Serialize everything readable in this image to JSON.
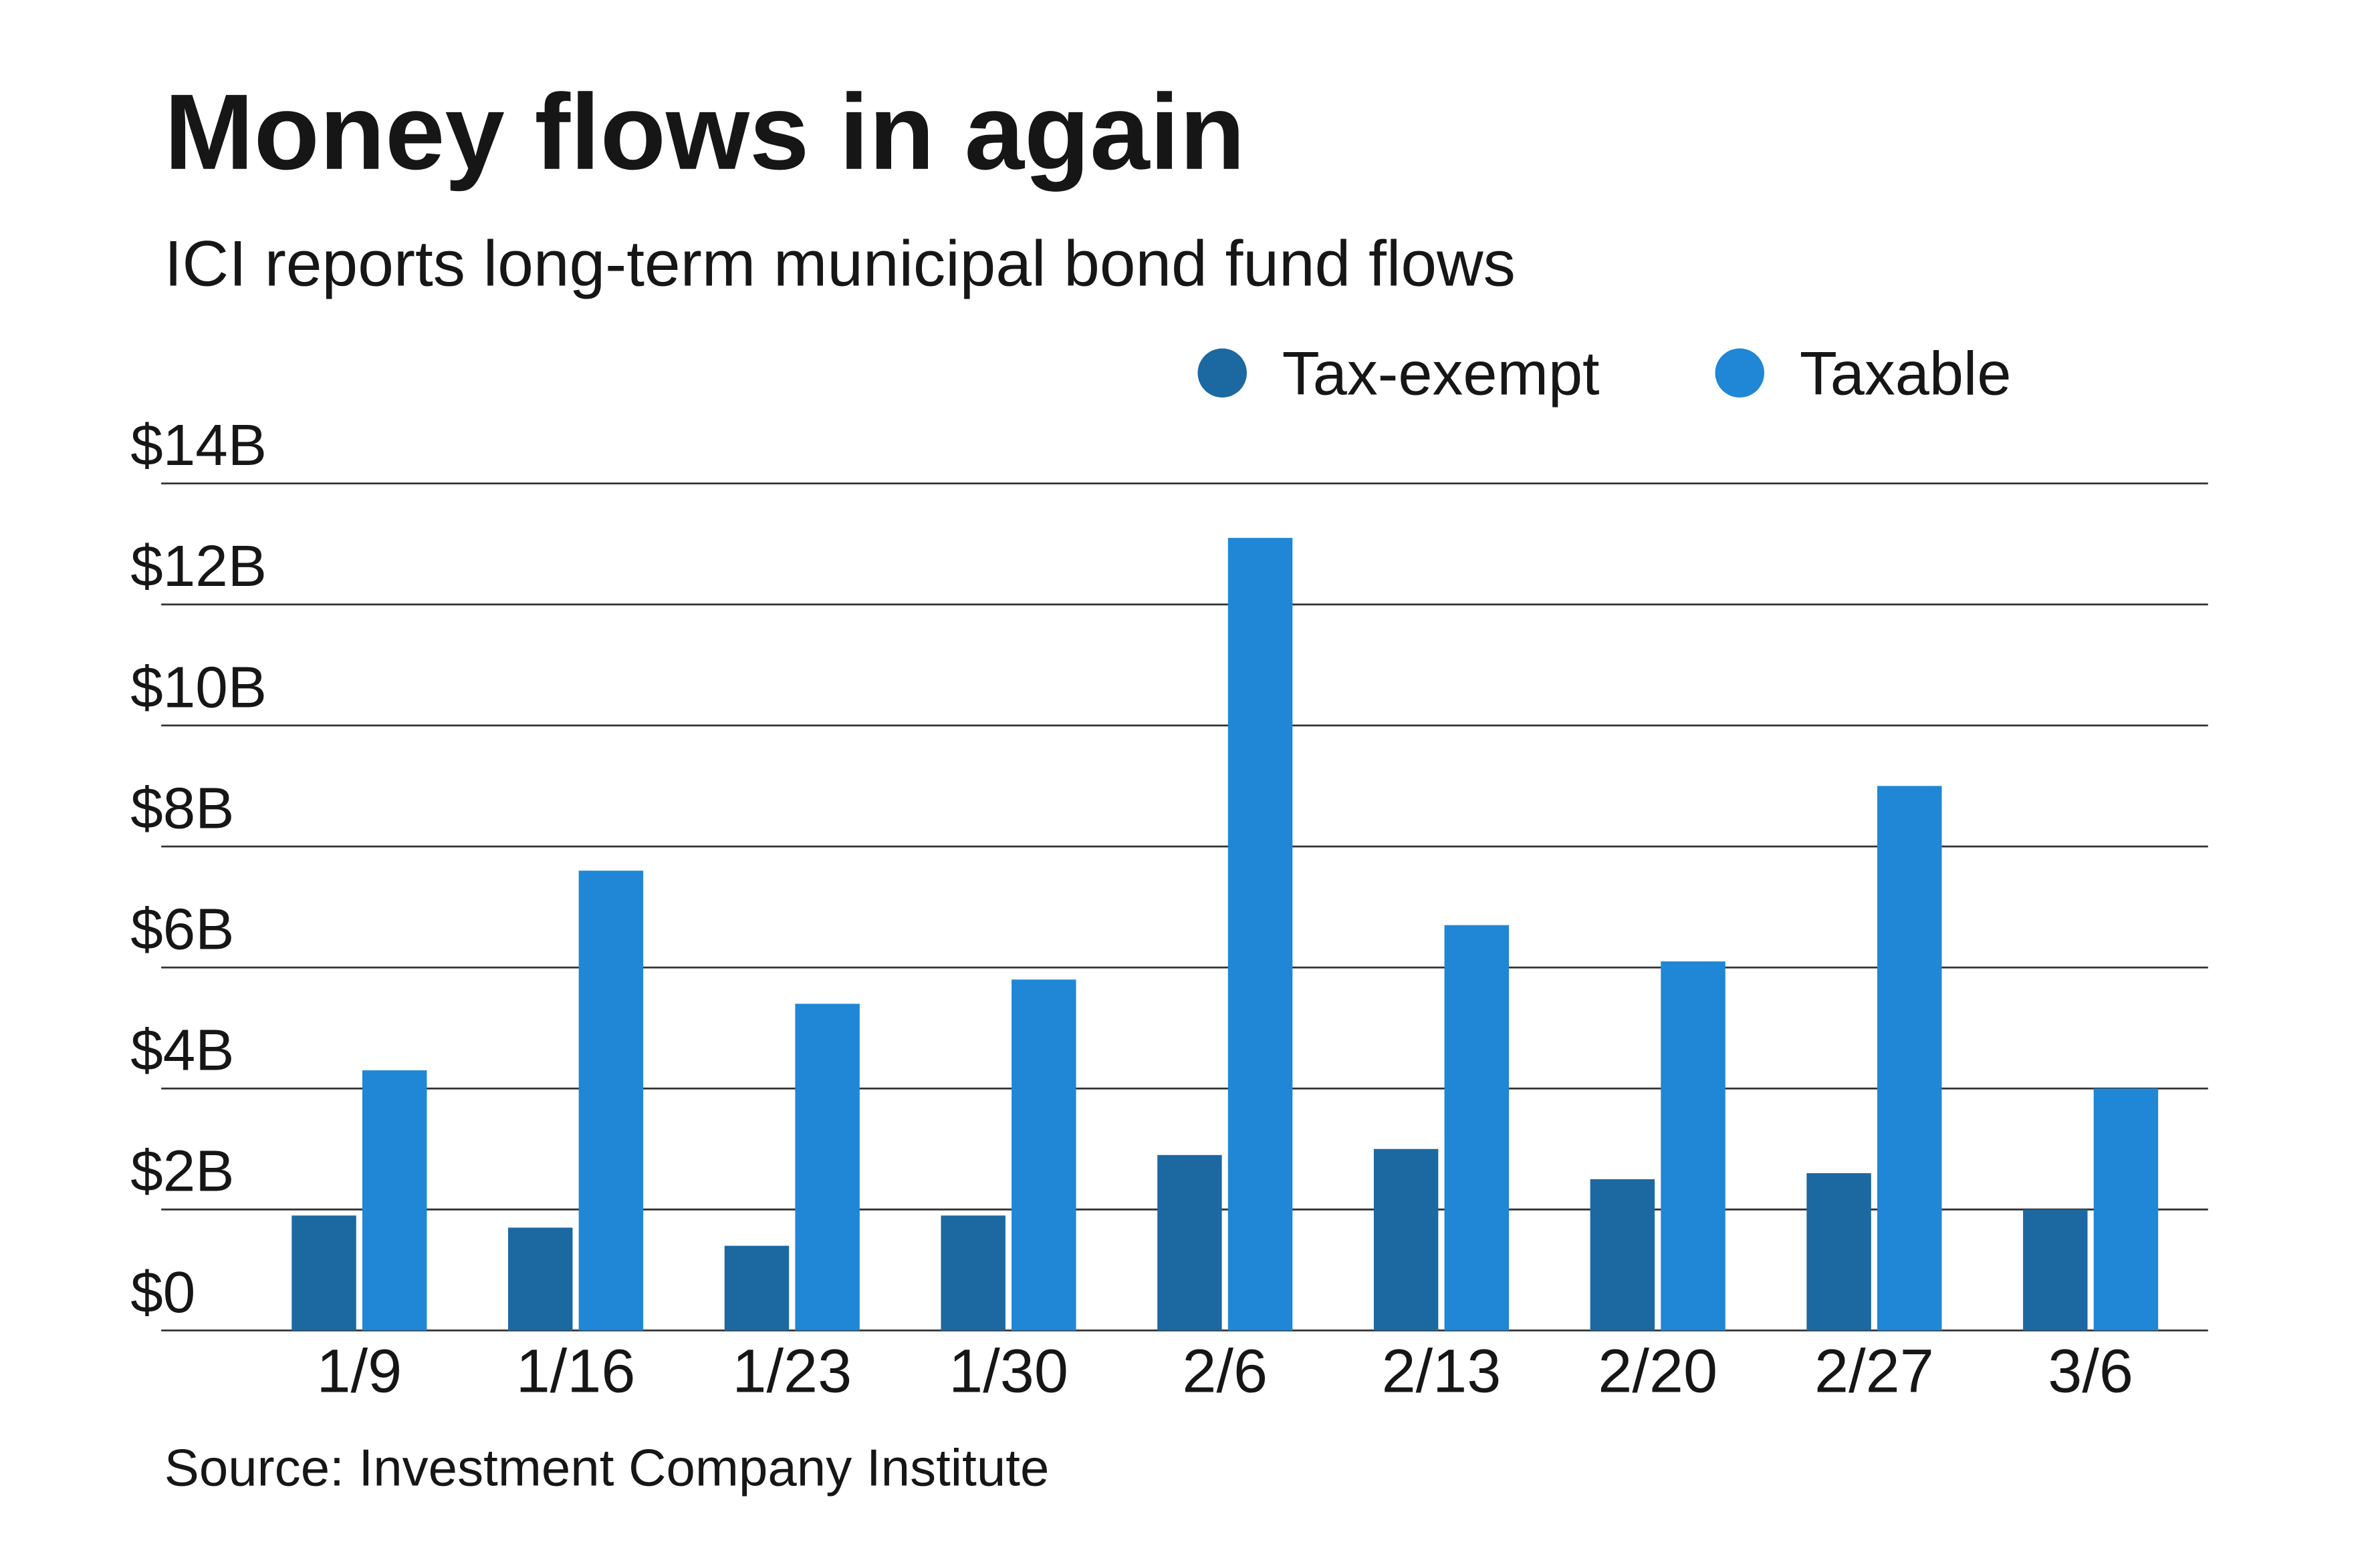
{
  "chart_data": {
    "type": "bar",
    "title": "Money flows in again",
    "subtitle": "ICI reports long-term municipal bond fund flows",
    "source": "Source: Investment Company Institute",
    "categories": [
      "1/9",
      "1/16",
      "1/23",
      "1/30",
      "2/6",
      "2/13",
      "2/20",
      "2/27",
      "3/6"
    ],
    "series": [
      {
        "name": "Tax-exempt",
        "color": "#1c69a2",
        "values": [
          1.9,
          1.7,
          1.4,
          1.9,
          2.9,
          3.0,
          2.5,
          2.6,
          2.0
        ]
      },
      {
        "name": "Taxable",
        "color": "#1f87d5",
        "values": [
          4.3,
          7.6,
          5.4,
          5.8,
          13.1,
          6.7,
          6.1,
          9.0,
          4.0
        ]
      }
    ],
    "ylim": [
      0,
      14
    ],
    "yticks": [
      {
        "value": 0,
        "label": "$0"
      },
      {
        "value": 2,
        "label": "$2B"
      },
      {
        "value": 4,
        "label": "$4B"
      },
      {
        "value": 6,
        "label": "$6B"
      },
      {
        "value": 8,
        "label": "$8B"
      },
      {
        "value": 10,
        "label": "$10B"
      },
      {
        "value": 12,
        "label": "$12B"
      },
      {
        "value": 14,
        "label": "$14B"
      }
    ],
    "grid": true,
    "legend": "top-right"
  }
}
